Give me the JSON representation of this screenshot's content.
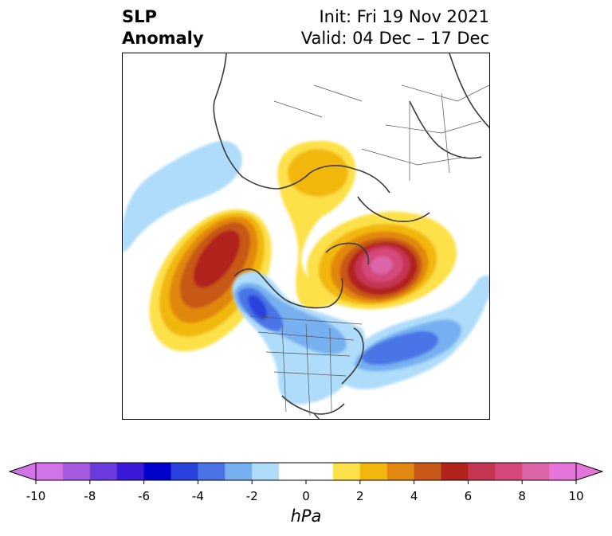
{
  "header": {
    "title_line1": "SLP",
    "title_line2": "Anomaly",
    "init": "Init: Fri 19 Nov 2021",
    "valid": "Valid: 04 Dec – 17 Dec"
  },
  "map": {
    "projection": "north-polar-stereographic",
    "field": "sea level pressure anomaly",
    "features": [
      {
        "name": "negative-anomaly-alaska-pacific",
        "min_hpa": -3,
        "region": "Bering Sea / Kamchatka"
      },
      {
        "name": "positive-anomaly-north-pacific",
        "max_hpa": 7,
        "region": "North Pacific, south of Aleutians"
      },
      {
        "name": "positive-anomaly-siberia",
        "max_hpa": 3,
        "region": "Eastern Siberia / Arctic"
      },
      {
        "name": "negative-anomaly-western-canada",
        "min_hpa": -6,
        "region": "Western Canada"
      },
      {
        "name": "negative-anomaly-north-atlantic",
        "min_hpa": -5,
        "region": "Western North Atlantic"
      },
      {
        "name": "positive-anomaly-north-atlantic-scandinavia",
        "max_hpa": 9,
        "region": "North Atlantic / Scandinavia"
      }
    ]
  },
  "colorbar": {
    "unit": "hPa",
    "min": -10,
    "max": 10,
    "step": 2,
    "ticks": [
      "-10",
      "-8",
      "-6",
      "-4",
      "-2",
      "0",
      "2",
      "4",
      "6",
      "8",
      "10"
    ],
    "colors": [
      "#d274e7",
      "#a55ae0",
      "#6c3bdd",
      "#3a1ad6",
      "#0000cc",
      "#2a42dd",
      "#4b74e6",
      "#76b0f0",
      "#aedcfa",
      "#ffffff",
      "#ffffff",
      "#fde14a",
      "#f2b70e",
      "#e28710",
      "#c85818",
      "#b1241e",
      "#c53652",
      "#d5497a",
      "#dc65a8",
      "#e675da"
    ],
    "extend_low_color": "#d274e7",
    "extend_high_color": "#e675da"
  }
}
